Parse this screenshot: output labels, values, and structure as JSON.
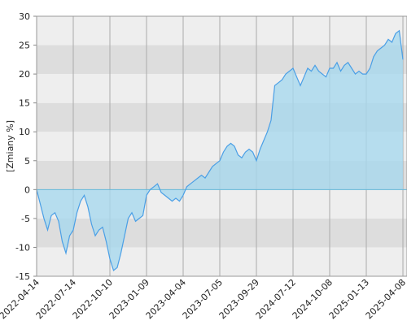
{
  "chart_data": {
    "type": "area",
    "y_label": "[Zmiany %]",
    "categories": [
      "2022-04-14",
      null,
      null,
      null,
      null,
      null,
      null,
      null,
      null,
      null,
      "2022-07-14",
      null,
      null,
      null,
      null,
      null,
      null,
      null,
      null,
      null,
      "2022-10-10",
      null,
      null,
      null,
      null,
      null,
      null,
      null,
      null,
      null,
      "2023-01-09",
      null,
      null,
      null,
      null,
      null,
      null,
      null,
      null,
      null,
      "2023-04-04",
      null,
      null,
      null,
      null,
      null,
      null,
      null,
      null,
      null,
      "2023-07-05",
      null,
      null,
      null,
      null,
      null,
      null,
      null,
      null,
      null,
      "2023-09-29",
      null,
      null,
      null,
      null,
      null,
      null,
      null,
      null,
      null,
      "2024-07-12",
      null,
      null,
      null,
      null,
      null,
      null,
      null,
      null,
      null,
      "2024-10-08",
      null,
      null,
      null,
      null,
      null,
      null,
      null,
      null,
      null,
      "2025-01-13",
      null,
      null,
      null,
      null,
      null,
      null,
      null,
      null,
      null,
      "2025-04-08"
    ],
    "values": [
      0,
      -2.5,
      -5,
      -7,
      -4.5,
      -4,
      -5.5,
      -9,
      -11,
      -8,
      -7,
      -4,
      -2,
      -1,
      -3,
      -6,
      -8,
      -7,
      -6.5,
      -9,
      -12,
      -14,
      -13.5,
      -11,
      -8,
      -5,
      -4,
      -5.5,
      -5,
      -4.5,
      -1,
      0,
      0.5,
      1,
      -0.5,
      -1,
      -1.5,
      -2,
      -1.5,
      -2,
      -1,
      0.5,
      1,
      1.5,
      2,
      2.5,
      2,
      3,
      4,
      4.5,
      5,
      6.5,
      7.5,
      8,
      7.5,
      6,
      5.5,
      6.5,
      7,
      6.5,
      5,
      7,
      8.5,
      10,
      12,
      18,
      18.5,
      19,
      20,
      20.5,
      21,
      19.5,
      18,
      19.5,
      21,
      20.5,
      21.5,
      20.5,
      20,
      19.5,
      21,
      21,
      22,
      20.5,
      21.5,
      22,
      21,
      20,
      20.5,
      20,
      20,
      21,
      23,
      24,
      24.5,
      25,
      26,
      25.5,
      27,
      27.5,
      22.5
    ],
    "color": "#4a9fe6",
    "fill": "#a8d8ee",
    "ylim": [
      -15,
      30
    ],
    "yticks": [
      -15,
      -10,
      -5,
      0,
      5,
      10,
      15,
      20,
      25,
      30
    ],
    "grid": true
  }
}
